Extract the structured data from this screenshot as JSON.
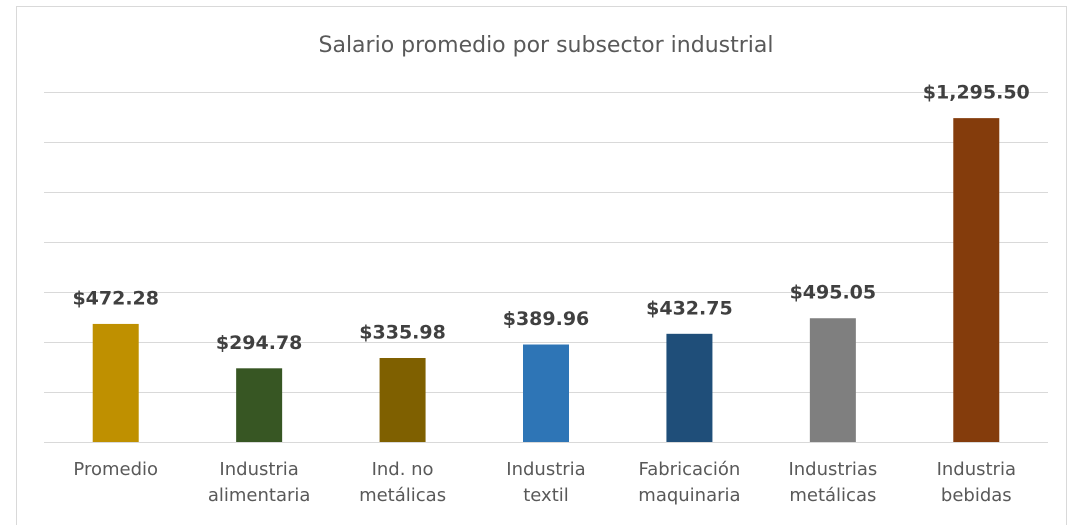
{
  "chart_data": {
    "type": "bar",
    "title": "Salario promedio por subsector industrial",
    "categories": [
      "Promedio",
      "Industria alimentaria",
      "Ind. no metálicas",
      "Industria textil",
      "Fabricación maquinaria",
      "Industrias metálicas",
      "Industria bebidas"
    ],
    "values": [
      472.28,
      294.78,
      335.98,
      389.96,
      432.75,
      495.05,
      1295.5
    ],
    "value_labels": [
      "$472.28",
      "$294.78",
      "$335.98",
      "$389.96",
      "$432.75",
      "$495.05",
      "$1,295.50"
    ],
    "colors": [
      "#bf9000",
      "#375623",
      "#7f6000",
      "#2e75b6",
      "#1f4e79",
      "#7f7f7f",
      "#843c0c"
    ],
    "ylim": [
      0,
      1400
    ],
    "yticks": [
      0,
      200,
      400,
      600,
      800,
      1000,
      1200,
      1400
    ],
    "grid": true
  }
}
